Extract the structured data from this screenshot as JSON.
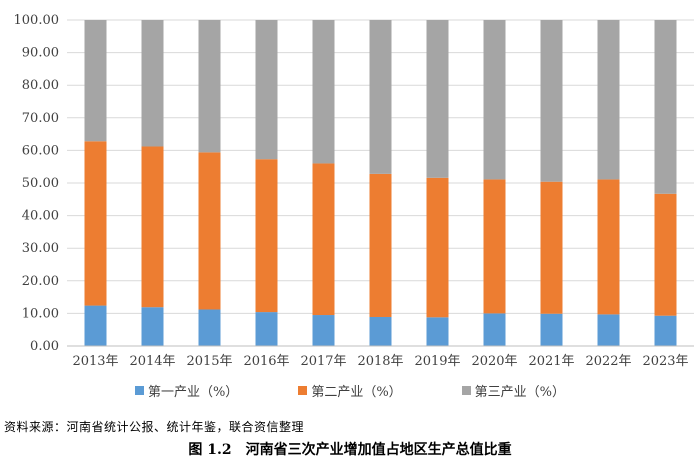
{
  "chart_data": {
    "type": "bar",
    "stacked": true,
    "categories": [
      "2013年",
      "2014年",
      "2015年",
      "2016年",
      "2017年",
      "2018年",
      "2019年",
      "2020年",
      "2021年",
      "2022年",
      "2023年"
    ],
    "series": [
      {
        "name": "第一产业（%）",
        "color": "#5B9BD5",
        "values": [
          12.4,
          11.9,
          11.2,
          10.4,
          9.5,
          8.9,
          8.8,
          10.0,
          9.9,
          9.7,
          9.3
        ]
      },
      {
        "name": "第二产业（%）",
        "color": "#ED7D31",
        "values": [
          50.4,
          49.3,
          48.2,
          46.9,
          46.5,
          43.9,
          42.8,
          41.1,
          40.5,
          41.4,
          37.4
        ]
      },
      {
        "name": "第三产业（%）",
        "color": "#A5A5A5",
        "values": [
          37.2,
          38.8,
          40.6,
          42.7,
          44.0,
          47.2,
          48.4,
          48.9,
          49.6,
          48.9,
          53.3
        ]
      }
    ],
    "ylim": [
      0,
      100
    ],
    "yticks": [
      "0.00",
      "10.00",
      "20.00",
      "30.00",
      "40.00",
      "50.00",
      "60.00",
      "70.00",
      "80.00",
      "90.00",
      "100.00"
    ],
    "legend_position": "bottom",
    "grid": true
  },
  "source_note": "资料来源：河南省统计公报、统计年鉴，联合资信整理",
  "caption": {
    "number": "图 1.2",
    "title": "河南省三次产业增加值占地区生产总值比重"
  }
}
